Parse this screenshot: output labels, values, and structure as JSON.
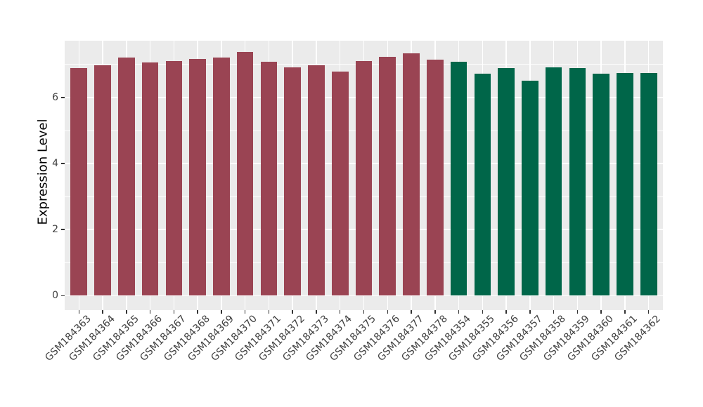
{
  "figure": {
    "background": "#FFFFFF",
    "panel_background": "#EBEBEB",
    "gridline_color": "#FFFFFF",
    "tick_mark_color": "#333333",
    "axis_text_color": "#404040",
    "axis_title_color": "#000000"
  },
  "chart_data": {
    "type": "bar",
    "title": "",
    "xlabel": "",
    "ylabel": "Expression Level",
    "ylim": [
      -0.44,
      7.72
    ],
    "yticks": [
      0,
      2,
      4,
      6
    ],
    "yticks_minor": [
      1,
      3,
      5,
      7
    ],
    "grid": true,
    "legend": "none",
    "bar_width_ratio": 0.7,
    "series": [
      {
        "color": "#9A4453",
        "categories": [
          "GSM184363",
          "GSM184364",
          "GSM184365",
          "GSM184366",
          "GSM184367",
          "GSM184368",
          "GSM184369",
          "GSM184370",
          "GSM184371",
          "GSM184372",
          "GSM184373",
          "GSM184374",
          "GSM184375",
          "GSM184376",
          "GSM184377",
          "GSM184378"
        ],
        "values": [
          6.9,
          6.98,
          7.22,
          7.06,
          7.11,
          7.16,
          7.22,
          7.37,
          7.09,
          6.91,
          6.97,
          6.78,
          7.11,
          7.24,
          7.33,
          7.14
        ]
      },
      {
        "color": "#006649",
        "categories": [
          "GSM184354",
          "GSM184355",
          "GSM184356",
          "GSM184357",
          "GSM184358",
          "GSM184359",
          "GSM184360",
          "GSM184361",
          "GSM184362"
        ],
        "values": [
          7.08,
          6.72,
          6.89,
          6.51,
          6.92,
          6.9,
          6.72,
          6.75,
          6.74
        ]
      }
    ]
  }
}
